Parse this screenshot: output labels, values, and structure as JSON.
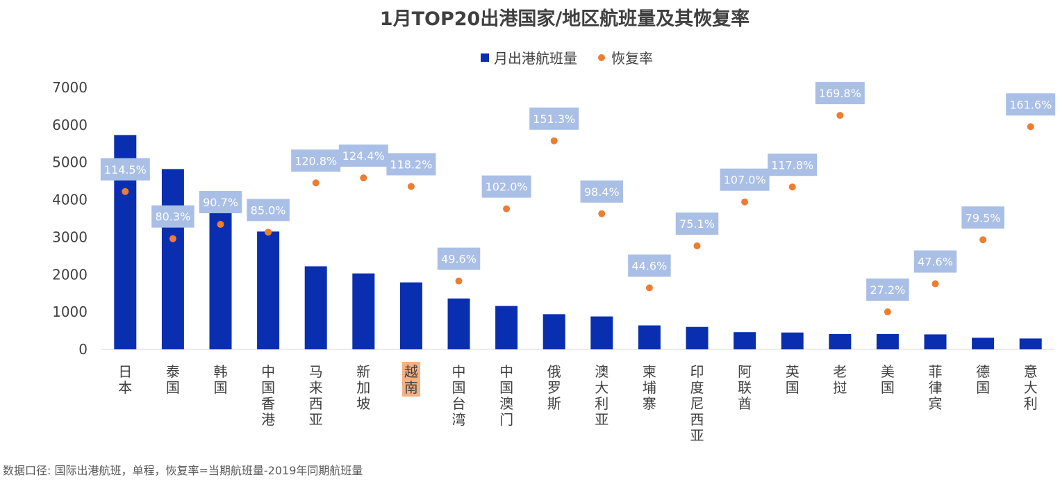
{
  "chart_data": {
    "type": "bar",
    "title": "1月TOP20出港国家/地区航班量及其恢复率",
    "categories": [
      "日本",
      "泰国",
      "韩国",
      "中国香港",
      "马来西亚",
      "新加坡",
      "越南",
      "中国台湾",
      "中国澳门",
      "俄罗斯",
      "澳大利亚",
      "柬埔寨",
      "印度尼西亚",
      "阿联酋",
      "英国",
      "老挝",
      "美国",
      "菲律宾",
      "德国",
      "意大利"
    ],
    "highlighted_category": "越南",
    "highlight_color": "#f4b183",
    "series": [
      {
        "name": "月出港航班量",
        "type": "bar",
        "color": "#0a2eb0",
        "values": [
          5730,
          4820,
          4200,
          3150,
          2220,
          2030,
          1790,
          1360,
          1160,
          940,
          880,
          640,
          600,
          460,
          450,
          410,
          410,
          400,
          310,
          290
        ]
      },
      {
        "name": "恢复率",
        "type": "scatter",
        "color": "#ed7d31",
        "values": [
          114.5,
          80.3,
          90.7,
          85.0,
          120.8,
          124.4,
          118.2,
          49.6,
          102.0,
          151.3,
          98.4,
          44.6,
          75.1,
          107.0,
          117.8,
          169.8,
          27.2,
          47.6,
          79.5,
          161.6
        ],
        "labels": [
          "114.5%",
          "80.3%",
          "90.7%",
          "85.0%",
          "120.8%",
          "124.4%",
          "118.2%",
          "49.6%",
          "102.0%",
          "151.3%",
          "98.4%",
          "44.6%",
          "75.1%",
          "107.0%",
          "117.8%",
          "169.8%",
          "27.2%",
          "47.6%",
          "79.5%",
          "161.6%"
        ],
        "label_bg": "#a9bfe6"
      }
    ],
    "yticks": [
      "0",
      "1000",
      "2000",
      "3000",
      "4000",
      "5000",
      "6000",
      "7000"
    ],
    "ylim": [
      0,
      7000
    ],
    "secondary_ylim": [
      0,
      190
    ],
    "grid": false,
    "legend_position": "top-center"
  },
  "footer": {
    "note": "数据口径: 国际出港航班，单程，恢复率=当期航班量-2019年同期航班量"
  }
}
